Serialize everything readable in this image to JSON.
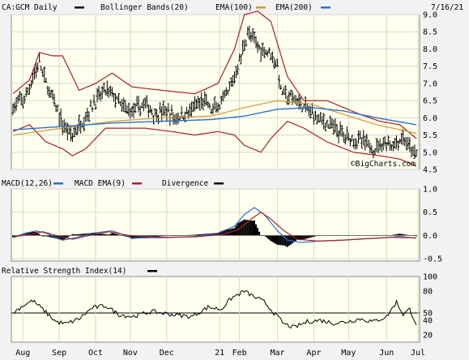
{
  "colors": {
    "frame_bg": "#f2f2f2",
    "plot_bg": "#ffffee",
    "grid": "#d6d6d6",
    "price": "#000000",
    "bollinger": "#a82222",
    "ema100": "#d09a2a",
    "ema200": "#2a6fd0",
    "macd_line": "#2a6fd0",
    "macd_ema": "#a82222",
    "divergence": "#000000",
    "rsi_line": "#000000"
  },
  "chart_data": [
    {
      "type": "candlestick",
      "title": "CA:GCM Daily",
      "date_label": "7/16/21",
      "legend": [
        {
          "label": "Bollinger Bands(20)",
          "color_key": "bollinger",
          "swatch": "none"
        },
        {
          "label": "EMA(100)",
          "color_key": "ema100"
        },
        {
          "label": "EMA(200)",
          "color_key": "ema200"
        }
      ],
      "watermark": "©BigCharts.com",
      "ylim": [
        4.5,
        9.0
      ],
      "yticks": [
        "9.0",
        "8.5",
        "8.0",
        "7.5",
        "7.0",
        "6.5",
        "6.0",
        "5.5",
        "5.0",
        "4.5"
      ],
      "n_days": 245,
      "price_keypoints": [
        [
          0,
          6.3
        ],
        [
          8,
          6.6
        ],
        [
          12,
          7.2
        ],
        [
          16,
          7.6
        ],
        [
          20,
          7.0
        ],
        [
          26,
          6.3
        ],
        [
          30,
          5.8
        ],
        [
          36,
          5.5
        ],
        [
          42,
          5.9
        ],
        [
          50,
          6.5
        ],
        [
          56,
          6.8
        ],
        [
          60,
          6.7
        ],
        [
          66,
          6.3
        ],
        [
          72,
          6.2
        ],
        [
          80,
          6.4
        ],
        [
          86,
          6.1
        ],
        [
          92,
          6.2
        ],
        [
          98,
          6.0
        ],
        [
          104,
          6.1
        ],
        [
          110,
          6.3
        ],
        [
          116,
          6.5
        ],
        [
          120,
          6.2
        ],
        [
          126,
          6.4
        ],
        [
          130,
          6.7
        ],
        [
          134,
          7.2
        ],
        [
          138,
          7.8
        ],
        [
          142,
          8.5
        ],
        [
          146,
          8.2
        ],
        [
          150,
          8.0
        ],
        [
          156,
          7.9
        ],
        [
          160,
          7.5
        ],
        [
          162,
          6.8
        ],
        [
          166,
          6.6
        ],
        [
          172,
          6.5
        ],
        [
          176,
          6.3
        ],
        [
          182,
          6.1
        ],
        [
          188,
          5.9
        ],
        [
          194,
          5.7
        ],
        [
          200,
          5.5
        ],
        [
          206,
          5.4
        ],
        [
          212,
          5.3
        ],
        [
          218,
          5.1
        ],
        [
          224,
          5.3
        ],
        [
          230,
          5.2
        ],
        [
          236,
          5.4
        ],
        [
          240,
          5.1
        ],
        [
          244,
          4.9
        ]
      ],
      "ema200_keypoints": [
        [
          0,
          5.65
        ],
        [
          30,
          5.75
        ],
        [
          60,
          5.85
        ],
        [
          90,
          5.9
        ],
        [
          120,
          5.95
        ],
        [
          140,
          6.05
        ],
        [
          160,
          6.25
        ],
        [
          180,
          6.3
        ],
        [
          200,
          6.2
        ],
        [
          220,
          6.0
        ],
        [
          244,
          5.8
        ]
      ],
      "ema100_keypoints": [
        [
          0,
          5.5
        ],
        [
          30,
          5.7
        ],
        [
          60,
          5.9
        ],
        [
          90,
          6.0
        ],
        [
          120,
          6.05
        ],
        [
          140,
          6.3
        ],
        [
          160,
          6.5
        ],
        [
          180,
          6.4
        ],
        [
          200,
          6.1
        ],
        [
          220,
          5.8
        ],
        [
          244,
          5.55
        ]
      ],
      "upper_band_keypoints": [
        [
          0,
          6.7
        ],
        [
          10,
          7.1
        ],
        [
          16,
          7.9
        ],
        [
          24,
          7.8
        ],
        [
          30,
          7.8
        ],
        [
          40,
          6.8
        ],
        [
          50,
          7.0
        ],
        [
          60,
          7.3
        ],
        [
          72,
          6.9
        ],
        [
          90,
          6.8
        ],
        [
          110,
          6.7
        ],
        [
          124,
          7.0
        ],
        [
          134,
          8.0
        ],
        [
          140,
          9.0
        ],
        [
          148,
          9.1
        ],
        [
          156,
          8.8
        ],
        [
          166,
          7.2
        ],
        [
          176,
          6.5
        ],
        [
          190,
          6.5
        ],
        [
          210,
          6.1
        ],
        [
          222,
          5.9
        ],
        [
          234,
          5.8
        ],
        [
          244,
          5.4
        ]
      ],
      "lower_band_keypoints": [
        [
          0,
          5.6
        ],
        [
          10,
          5.8
        ],
        [
          20,
          5.3
        ],
        [
          30,
          5.1
        ],
        [
          36,
          4.9
        ],
        [
          44,
          5.1
        ],
        [
          56,
          5.7
        ],
        [
          66,
          5.7
        ],
        [
          80,
          5.7
        ],
        [
          96,
          5.6
        ],
        [
          110,
          5.5
        ],
        [
          124,
          5.6
        ],
        [
          134,
          5.5
        ],
        [
          140,
          5.2
        ],
        [
          150,
          5.0
        ],
        [
          156,
          5.4
        ],
        [
          166,
          5.9
        ],
        [
          176,
          5.7
        ],
        [
          190,
          5.3
        ],
        [
          206,
          5.0
        ],
        [
          222,
          4.9
        ],
        [
          234,
          4.8
        ],
        [
          244,
          4.6
        ]
      ]
    },
    {
      "type": "line",
      "title": "MACD(12,26)",
      "legend": [
        {
          "label": "MACD EMA(9)",
          "color_key": "macd_line"
        },
        {
          "label": "Divergence",
          "color_key": "macd_ema"
        },
        {
          "label": "",
          "color_key": "divergence"
        }
      ],
      "ylim": [
        -0.55,
        1.0
      ],
      "yticks": [
        "1.0",
        "0.5",
        "0.0",
        "-0.5"
      ],
      "macd_keypoints": [
        [
          0,
          -0.05
        ],
        [
          8,
          0.05
        ],
        [
          14,
          0.1
        ],
        [
          20,
          0.05
        ],
        [
          30,
          -0.1
        ],
        [
          38,
          -0.05
        ],
        [
          48,
          0.05
        ],
        [
          60,
          0.1
        ],
        [
          72,
          -0.05
        ],
        [
          90,
          -0.05
        ],
        [
          110,
          -0.02
        ],
        [
          124,
          0.05
        ],
        [
          134,
          0.2
        ],
        [
          140,
          0.45
        ],
        [
          146,
          0.6
        ],
        [
          152,
          0.45
        ],
        [
          160,
          0.1
        ],
        [
          166,
          -0.1
        ],
        [
          174,
          -0.15
        ],
        [
          186,
          -0.12
        ],
        [
          200,
          -0.1
        ],
        [
          212,
          -0.07
        ],
        [
          224,
          -0.05
        ],
        [
          234,
          -0.02
        ],
        [
          244,
          -0.06
        ]
      ],
      "signal_keypoints": [
        [
          0,
          -0.03
        ],
        [
          10,
          0.02
        ],
        [
          18,
          0.08
        ],
        [
          26,
          0.0
        ],
        [
          36,
          -0.08
        ],
        [
          46,
          0.0
        ],
        [
          58,
          0.08
        ],
        [
          70,
          0.0
        ],
        [
          90,
          -0.04
        ],
        [
          110,
          -0.03
        ],
        [
          126,
          0.02
        ],
        [
          136,
          0.12
        ],
        [
          144,
          0.35
        ],
        [
          150,
          0.5
        ],
        [
          156,
          0.35
        ],
        [
          164,
          0.1
        ],
        [
          172,
          -0.08
        ],
        [
          184,
          -0.12
        ],
        [
          200,
          -0.1
        ],
        [
          214,
          -0.07
        ],
        [
          228,
          -0.04
        ],
        [
          244,
          -0.05
        ]
      ]
    },
    {
      "type": "line",
      "title": "Relative Strength Index(14)",
      "legend": [
        {
          "label": "",
          "color_key": "rsi_line"
        }
      ],
      "ylim": [
        10,
        100
      ],
      "yticks": [
        "100",
        "80",
        "50",
        "40",
        "20"
      ],
      "reference_line": 50,
      "rsi_keypoints": [
        [
          0,
          50
        ],
        [
          6,
          60
        ],
        [
          12,
          67
        ],
        [
          18,
          55
        ],
        [
          26,
          38
        ],
        [
          32,
          35
        ],
        [
          40,
          42
        ],
        [
          48,
          57
        ],
        [
          56,
          60
        ],
        [
          64,
          48
        ],
        [
          72,
          45
        ],
        [
          84,
          52
        ],
        [
          96,
          48
        ],
        [
          108,
          45
        ],
        [
          118,
          58
        ],
        [
          126,
          55
        ],
        [
          132,
          70
        ],
        [
          140,
          80
        ],
        [
          146,
          72
        ],
        [
          152,
          65
        ],
        [
          158,
          50
        ],
        [
          164,
          35
        ],
        [
          170,
          30
        ],
        [
          178,
          38
        ],
        [
          186,
          40
        ],
        [
          194,
          36
        ],
        [
          202,
          38
        ],
        [
          210,
          42
        ],
        [
          218,
          38
        ],
        [
          226,
          45
        ],
        [
          232,
          65
        ],
        [
          236,
          48
        ],
        [
          240,
          55
        ],
        [
          244,
          35
        ]
      ]
    }
  ],
  "x_axis": {
    "labels": [
      "Aug",
      "Sep",
      "Oct",
      "Nov",
      "Dec",
      "21",
      "Feb",
      "Mar",
      "Apr",
      "May",
      "Jun",
      "Jul"
    ],
    "label_day_index": [
      6,
      28,
      50,
      71,
      93,
      125,
      137,
      160,
      182,
      203,
      226,
      245
    ]
  }
}
